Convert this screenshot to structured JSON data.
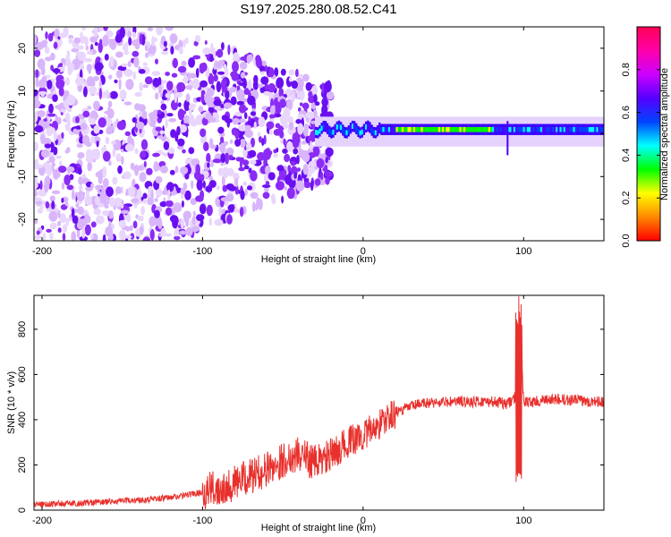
{
  "figure": {
    "title": "S197.2025.280.08.52.C41"
  },
  "chart_data": [
    {
      "type": "heatmap",
      "title": "",
      "xlabel": "Height of straight line (km)",
      "ylabel": "Frequency (Hz)",
      "xlim": [
        -205,
        150
      ],
      "ylim": [
        -25,
        25
      ],
      "xticks": [
        -200,
        -100,
        0,
        100
      ],
      "yticks": [
        -20,
        -10,
        0,
        10,
        20
      ],
      "colorbar": {
        "label": "Normalized spectral amplitude",
        "range": [
          0,
          1
        ],
        "ticks": [
          "0.0",
          "0.2",
          "0.4",
          "0.6",
          "0.8"
        ],
        "colors": [
          "#ff0000",
          "#ff8800",
          "#ffff00",
          "#00ff00",
          "#00ffff",
          "#0044ff",
          "#5500ff",
          "#cc00ff",
          "#ff00aa",
          "#ff0055"
        ]
      },
      "description_values": {
        "noise_region_x": [
          -205,
          -30
        ],
        "band_region_x": [
          -30,
          150
        ],
        "band_center_freq_hz": 1,
        "spike_x_km": 90
      }
    },
    {
      "type": "line",
      "title": "",
      "xlabel": "Height of straight line (km)",
      "ylabel": "SNR (10 * v/v)",
      "xlim": [
        -205,
        150
      ],
      "ylim": [
        0,
        950
      ],
      "xticks": [
        -200,
        -100,
        0,
        100
      ],
      "yticks": [
        0,
        200,
        400,
        600,
        800
      ],
      "series": [
        {
          "name": "SNR",
          "color": "#e8302c",
          "x": [
            -205,
            -180,
            -150,
            -120,
            -100,
            -80,
            -70,
            -60,
            -50,
            -40,
            -30,
            -20,
            -10,
            0,
            10,
            20,
            30,
            40,
            60,
            80,
            90,
            95,
            97,
            100,
            120,
            150
          ],
          "y": [
            25,
            30,
            40,
            55,
            80,
            120,
            150,
            180,
            220,
            250,
            210,
            240,
            300,
            330,
            380,
            430,
            460,
            475,
            480,
            480,
            470,
            500,
            950,
            475,
            490,
            480
          ]
        }
      ]
    }
  ]
}
